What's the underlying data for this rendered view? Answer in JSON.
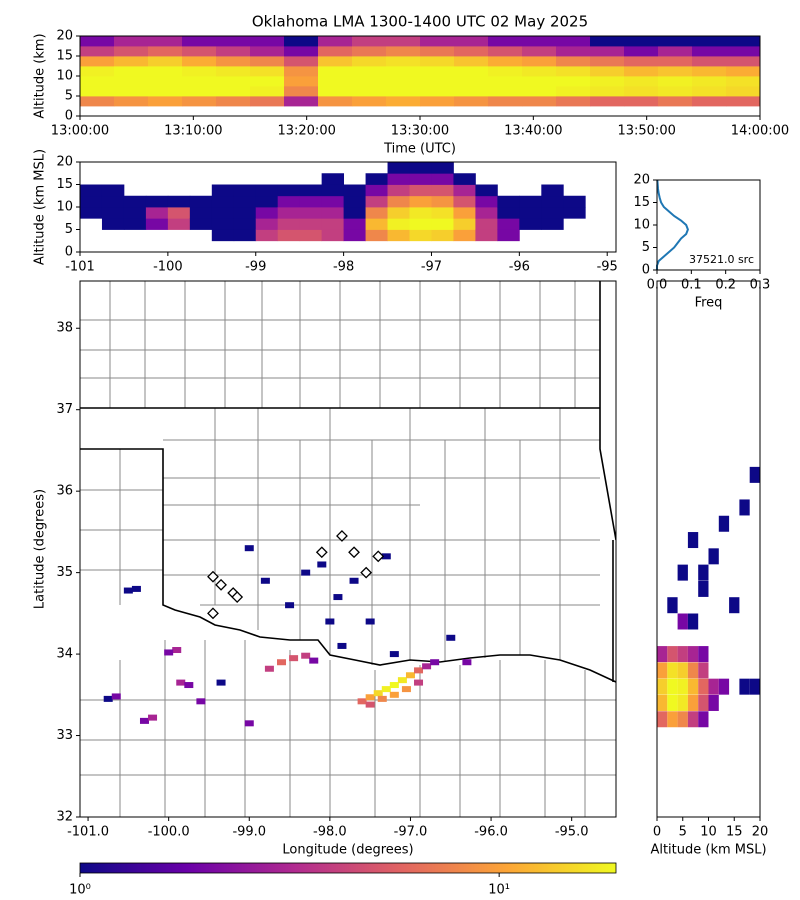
{
  "chart_data": [
    {
      "type": "heatmap",
      "title": "Oklahoma LMA 1300-1400 UTC 02 May 2025",
      "xlabel": "Time (UTC)",
      "ylabel": "Altitude (km)",
      "xlim": [
        0,
        60
      ],
      "xticks": [
        {
          "value": 0,
          "label": "13:00:00"
        },
        {
          "value": 10,
          "label": "13:10:00"
        },
        {
          "value": 20,
          "label": "13:20:00"
        },
        {
          "value": 30,
          "label": "13:30:00"
        },
        {
          "value": 40,
          "label": "13:40:00"
        },
        {
          "value": 50,
          "label": "13:50:00"
        },
        {
          "value": 60,
          "label": "14:00:00"
        }
      ],
      "ylim": [
        0,
        20
      ],
      "yticks": [
        0,
        5,
        10,
        15,
        20
      ],
      "x_bins": [
        0,
        3,
        6,
        9,
        12,
        15,
        18,
        21,
        24,
        27,
        30,
        33,
        36,
        39,
        42,
        45,
        48,
        51,
        54,
        57,
        60
      ],
      "y_bins": [
        0,
        2.5,
        5,
        7.5,
        10,
        12.5,
        15,
        17.5,
        20
      ],
      "values": [
        [
          0,
          8,
          19,
          19,
          18,
          10,
          4,
          2
        ],
        [
          0,
          9,
          19,
          19,
          19,
          12,
          5,
          3
        ],
        [
          0,
          10,
          19,
          19,
          19,
          14,
          6,
          3
        ],
        [
          0,
          9,
          19,
          19,
          18,
          11,
          5,
          2
        ],
        [
          0,
          8,
          19,
          19,
          17,
          9,
          4,
          2
        ],
        [
          0,
          7,
          18,
          19,
          16,
          8,
          3,
          2
        ],
        [
          0,
          3,
          8,
          10,
          9,
          5,
          2,
          1
        ],
        [
          0,
          9,
          19,
          19,
          19,
          13,
          6,
          3
        ],
        [
          0,
          10,
          19,
          19,
          19,
          15,
          7,
          4
        ],
        [
          0,
          11,
          19,
          19,
          19,
          16,
          8,
          4
        ],
        [
          0,
          10,
          19,
          19,
          19,
          15,
          7,
          3
        ],
        [
          0,
          9,
          19,
          19,
          19,
          13,
          6,
          3
        ],
        [
          0,
          8,
          19,
          19,
          18,
          11,
          5,
          2
        ],
        [
          0,
          8,
          19,
          19,
          17,
          10,
          4,
          2
        ],
        [
          0,
          7,
          18,
          19,
          16,
          8,
          3,
          2
        ],
        [
          0,
          6,
          17,
          18,
          14,
          7,
          3,
          1
        ],
        [
          0,
          6,
          16,
          17,
          12,
          6,
          2,
          1
        ],
        [
          0,
          7,
          17,
          18,
          13,
          6,
          3,
          1
        ],
        [
          0,
          6,
          16,
          17,
          12,
          5,
          2,
          1
        ],
        [
          0,
          6,
          15,
          16,
          11,
          5,
          2,
          1
        ]
      ]
    },
    {
      "type": "heatmap",
      "ylabel": "Altitude (km MSL)",
      "xlim": [
        -101,
        -94.9
      ],
      "xticks": [
        -101,
        -100,
        -99,
        -98,
        -97,
        -96,
        -95
      ],
      "ylim": [
        0,
        20
      ],
      "yticks": [
        0,
        5,
        10,
        15,
        20
      ],
      "x_bins": [
        -101,
        -100.75,
        -100.5,
        -100.25,
        -100,
        -99.75,
        -99.5,
        -99.25,
        -99,
        -98.75,
        -98.5,
        -98.25,
        -98,
        -97.75,
        -97.5,
        -97.25,
        -97,
        -96.75,
        -96.5,
        -96.25,
        -96,
        -95.75,
        -95.5,
        -95.25,
        -95
      ],
      "y_bins": [
        0,
        2.5,
        5,
        7.5,
        10,
        12.5,
        15,
        17.5,
        20
      ],
      "values": [
        [
          0,
          0,
          0,
          1,
          1,
          1,
          0,
          0
        ],
        [
          0,
          0,
          1,
          1,
          1,
          1,
          0,
          0
        ],
        [
          0,
          0,
          1,
          1,
          1,
          0,
          0,
          0
        ],
        [
          0,
          0,
          2,
          3,
          1,
          0,
          0,
          0
        ],
        [
          0,
          0,
          4,
          5,
          1,
          0,
          0,
          0
        ],
        [
          0,
          0,
          1,
          1,
          1,
          0,
          0,
          0
        ],
        [
          0,
          1,
          1,
          1,
          1,
          1,
          0,
          0
        ],
        [
          0,
          1,
          1,
          1,
          1,
          1,
          0,
          0
        ],
        [
          0,
          4,
          3,
          2,
          1,
          1,
          0,
          0
        ],
        [
          0,
          5,
          4,
          3,
          2,
          1,
          0,
          0
        ],
        [
          0,
          5,
          4,
          3,
          2,
          1,
          0,
          0
        ],
        [
          0,
          4,
          4,
          3,
          2,
          1,
          1,
          0
        ],
        [
          0,
          2,
          2,
          1,
          1,
          1,
          0,
          0
        ],
        [
          0,
          8,
          12,
          8,
          4,
          2,
          1,
          0
        ],
        [
          0,
          12,
          18,
          14,
          8,
          4,
          2,
          1
        ],
        [
          0,
          15,
          19,
          17,
          10,
          5,
          2,
          1
        ],
        [
          0,
          14,
          19,
          16,
          9,
          5,
          2,
          1
        ],
        [
          0,
          10,
          14,
          10,
          5,
          3,
          1,
          0
        ],
        [
          0,
          4,
          4,
          3,
          2,
          1,
          0,
          0
        ],
        [
          0,
          2,
          2,
          1,
          1,
          0,
          0,
          0
        ],
        [
          0,
          0,
          1,
          1,
          1,
          0,
          0,
          0
        ],
        [
          0,
          0,
          1,
          1,
          1,
          1,
          0,
          0
        ],
        [
          0,
          0,
          0,
          1,
          1,
          0,
          0,
          0
        ],
        [
          0,
          0,
          0,
          0,
          0,
          0,
          0,
          0
        ]
      ]
    },
    {
      "type": "line",
      "xlabel": "Freq",
      "annotation": "37521.0 src",
      "color": "#1f77b4",
      "xlim": [
        0,
        0.3
      ],
      "xticks": [
        {
          "value": 0,
          "label": "0.0"
        },
        0.1,
        0.2,
        0.3
      ],
      "ylim": [
        0,
        20
      ],
      "yticks": [
        0,
        5,
        10,
        15,
        20
      ],
      "y": [
        0,
        1,
        2,
        3,
        4,
        5,
        6,
        7,
        8,
        9,
        10,
        11,
        12,
        13,
        14,
        15,
        16,
        17,
        18,
        19,
        20
      ],
      "values": [
        0,
        0,
        0.005,
        0.02,
        0.035,
        0.05,
        0.06,
        0.07,
        0.085,
        0.09,
        0.085,
        0.07,
        0.05,
        0.035,
        0.02,
        0.012,
        0.008,
        0.005,
        0.003,
        0.002,
        0.001
      ]
    },
    {
      "type": "scatter",
      "xlabel": "Longitude (degrees)",
      "ylabel": "Latitude (degrees)",
      "xlim": [
        -101.1,
        -94.45
      ],
      "xticks": [
        {
          "value": -101,
          "label": "-101.0"
        },
        {
          "value": -100,
          "label": "-100.0"
        },
        {
          "value": -99,
          "label": "-99.0"
        },
        {
          "value": -98,
          "label": "-98.0"
        },
        {
          "value": -97,
          "label": "-97.0"
        },
        {
          "value": -96,
          "label": "-96.0"
        },
        {
          "value": -95,
          "label": "-95.0"
        }
      ],
      "ylim": [
        32,
        38.58
      ],
      "yticks": [
        32,
        33,
        34,
        35,
        36,
        37,
        38
      ],
      "x": [
        -97.6,
        -97.5,
        -97.4,
        -97.3,
        -97.2,
        -97.1,
        -97.0,
        -96.9,
        -97.5,
        -97.35,
        -97.2,
        -97.05,
        -96.9,
        -96.8,
        -96.7,
        -98.75,
        -98.6,
        -98.45,
        -98.3,
        -98.2,
        -99.9,
        -100.0,
        -99.85,
        -99.75,
        -99.6,
        -100.3,
        -100.2,
        -100.75,
        -100.65,
        -99.0,
        -100.4,
        -100.5,
        -99.35,
        -98.3,
        -98.1,
        -97.9,
        -97.7,
        -98.5,
        -97.5,
        -98.0,
        -97.3,
        -99.0,
        -98.8,
        -97.2,
        -96.5,
        -96.3,
        -97.85
      ],
      "y": [
        33.42,
        33.47,
        33.52,
        33.57,
        33.62,
        33.68,
        33.74,
        33.8,
        33.38,
        33.45,
        33.5,
        33.57,
        33.65,
        33.85,
        33.9,
        33.82,
        33.9,
        33.95,
        33.98,
        33.92,
        34.05,
        34.02,
        33.65,
        33.62,
        33.42,
        33.18,
        33.22,
        33.45,
        33.48,
        33.15,
        34.8,
        34.78,
        33.65,
        35.0,
        35.1,
        34.7,
        34.9,
        34.6,
        34.4,
        34.4,
        35.2,
        35.3,
        34.9,
        34.0,
        34.2,
        33.9,
        34.1
      ],
      "values": [
        6,
        10,
        15,
        18,
        19,
        17,
        12,
        6,
        5,
        8,
        10,
        9,
        4,
        3,
        2,
        4,
        6,
        5,
        4,
        2,
        3,
        2,
        3,
        2,
        2,
        2,
        3,
        1,
        2,
        2,
        1,
        1,
        1,
        1,
        1,
        1,
        1,
        1,
        1,
        1,
        1,
        1,
        1,
        1,
        1,
        2,
        1
      ],
      "stations": {
        "x": [
          -97.85,
          -98.1,
          -97.7,
          -97.55,
          -97.4,
          -99.45,
          -99.35,
          -99.2,
          -99.15,
          -99.45
        ],
        "y": [
          35.45,
          35.25,
          35.25,
          35.0,
          35.2,
          34.95,
          34.85,
          34.75,
          34.7,
          34.5
        ]
      }
    },
    {
      "type": "scatter",
      "xlabel": "Altitude (km MSL)",
      "xlim": [
        0,
        20
      ],
      "xticks": [
        0,
        5,
        10,
        15,
        20
      ],
      "ylim": [
        32,
        38.58
      ],
      "x": [
        1,
        3,
        5,
        7,
        9,
        1,
        3,
        5,
        7,
        9,
        1,
        3,
        5,
        7,
        9,
        1,
        3,
        5,
        7,
        9,
        1,
        3,
        5,
        7,
        9,
        11,
        11,
        13,
        17,
        19,
        5,
        7,
        3,
        9,
        5,
        11,
        7,
        13,
        17,
        19,
        9,
        15
      ],
      "y": [
        33.2,
        33.2,
        33.2,
        33.2,
        33.2,
        33.4,
        33.4,
        33.4,
        33.4,
        33.4,
        33.6,
        33.6,
        33.6,
        33.6,
        33.6,
        33.8,
        33.8,
        33.8,
        33.8,
        33.8,
        34.0,
        34.0,
        34.0,
        34.0,
        34.0,
        33.4,
        33.6,
        33.6,
        33.6,
        33.6,
        34.4,
        34.4,
        34.6,
        34.8,
        35.0,
        35.2,
        35.4,
        35.6,
        35.8,
        36.2,
        35.0,
        34.6
      ],
      "values": [
        6,
        10,
        8,
        4,
        2,
        12,
        19,
        17,
        10,
        5,
        14,
        19,
        18,
        12,
        6,
        10,
        16,
        14,
        8,
        4,
        3,
        5,
        4,
        3,
        2,
        2,
        3,
        2,
        1,
        1,
        2,
        1,
        1,
        1,
        1,
        1,
        1,
        1,
        1,
        1,
        1,
        1
      ]
    },
    {
      "type": "colorbar",
      "scale": "log",
      "clim": [
        1,
        19
      ],
      "colormap": [
        "#0d0887",
        "#6a00a8",
        "#b12a90",
        "#e16462",
        "#fca636",
        "#f0f921"
      ],
      "ticks": [
        {
          "value": 1,
          "label": "10⁰"
        },
        {
          "value": 10,
          "label": "10¹"
        }
      ]
    }
  ]
}
